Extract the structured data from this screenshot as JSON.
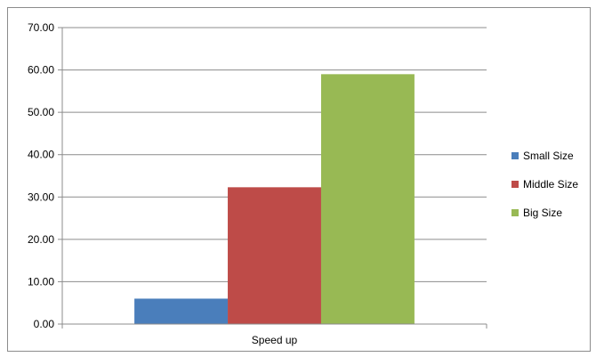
{
  "chart_data": {
    "type": "bar",
    "categories": [
      "Speed up"
    ],
    "series": [
      {
        "name": "Small Size",
        "values": [
          6.0
        ],
        "color": "#4a7ebb"
      },
      {
        "name": "Middle Size",
        "values": [
          32.3
        ],
        "color": "#be4b48"
      },
      {
        "name": "Big Size",
        "values": [
          59.0
        ],
        "color": "#98b954"
      }
    ],
    "title": "",
    "xlabel": "",
    "ylabel": "",
    "ylim": [
      0,
      70
    ],
    "yticks": [
      "0.00",
      "10.00",
      "20.00",
      "30.00",
      "40.00",
      "50.00",
      "60.00",
      "70.00"
    ],
    "grid": true,
    "legend_position": "right"
  }
}
